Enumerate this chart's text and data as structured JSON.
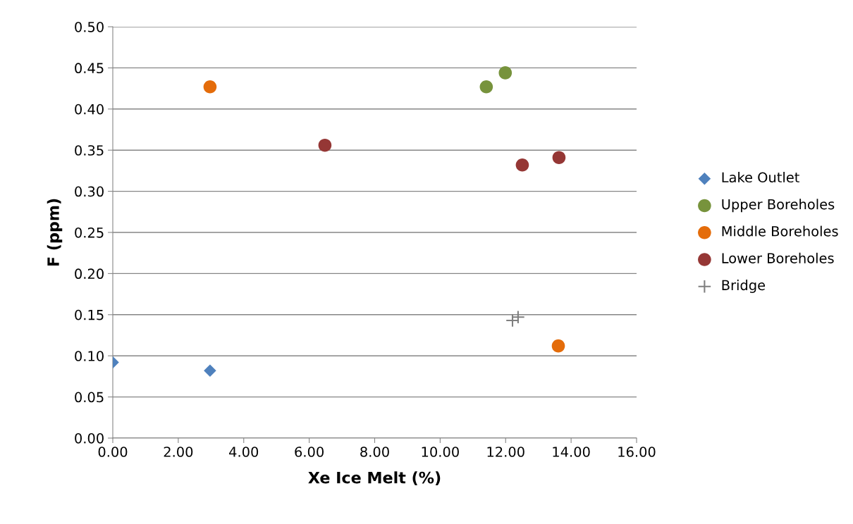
{
  "chart_data": {
    "type": "scatter",
    "xlabel": "Xe Ice Melt (%)",
    "ylabel": "F (ppm)",
    "xlim": [
      0,
      16
    ],
    "ylim": [
      0,
      0.5
    ],
    "xticks": [
      {
        "value": 0,
        "label": "0.00"
      },
      {
        "value": 2,
        "label": "2.00"
      },
      {
        "value": 4,
        "label": "4.00"
      },
      {
        "value": 6,
        "label": "6.00"
      },
      {
        "value": 8,
        "label": "8.00"
      },
      {
        "value": 10,
        "label": "10.00"
      },
      {
        "value": 12,
        "label": "12.00"
      },
      {
        "value": 14,
        "label": "14.00"
      },
      {
        "value": 16,
        "label": "16.00"
      }
    ],
    "yticks": [
      {
        "value": 0,
        "label": "0.00"
      },
      {
        "value": 0.05,
        "label": "0.05"
      },
      {
        "value": 0.1,
        "label": "0.10"
      },
      {
        "value": 0.15,
        "label": "0.15"
      },
      {
        "value": 0.2,
        "label": "0.20"
      },
      {
        "value": 0.25,
        "label": "0.25"
      },
      {
        "value": 0.3,
        "label": "0.30"
      },
      {
        "value": 0.35,
        "label": "0.35"
      },
      {
        "value": 0.4,
        "label": "0.40"
      },
      {
        "value": 0.45,
        "label": "0.45"
      },
      {
        "value": 0.5,
        "label": "0.50"
      }
    ],
    "grid": "y",
    "legend": "right",
    "series": [
      {
        "name": "Lake Outlet",
        "color": "#4f81bd",
        "marker": "diamond",
        "x": [
          0.0,
          2.97
        ],
        "values": [
          0.092,
          0.082
        ]
      },
      {
        "name": "Upper Boreholes",
        "color": "#77933c",
        "marker": "circle",
        "x": [
          11.41,
          11.99
        ],
        "values": [
          0.427,
          0.444
        ]
      },
      {
        "name": "Middle Boreholes",
        "color": "#e46c0a",
        "marker": "circle",
        "x": [
          2.97,
          13.61
        ],
        "values": [
          0.427,
          0.112
        ]
      },
      {
        "name": "Lower Boreholes",
        "color": "#953735",
        "marker": "circle",
        "x": [
          6.48,
          12.51,
          13.63
        ],
        "values": [
          0.356,
          0.332,
          0.341
        ]
      },
      {
        "name": "Bridge",
        "color": "#7f7f7f",
        "marker": "cross",
        "x": [
          12.21,
          12.38
        ],
        "values": [
          0.143,
          0.147
        ]
      }
    ]
  }
}
